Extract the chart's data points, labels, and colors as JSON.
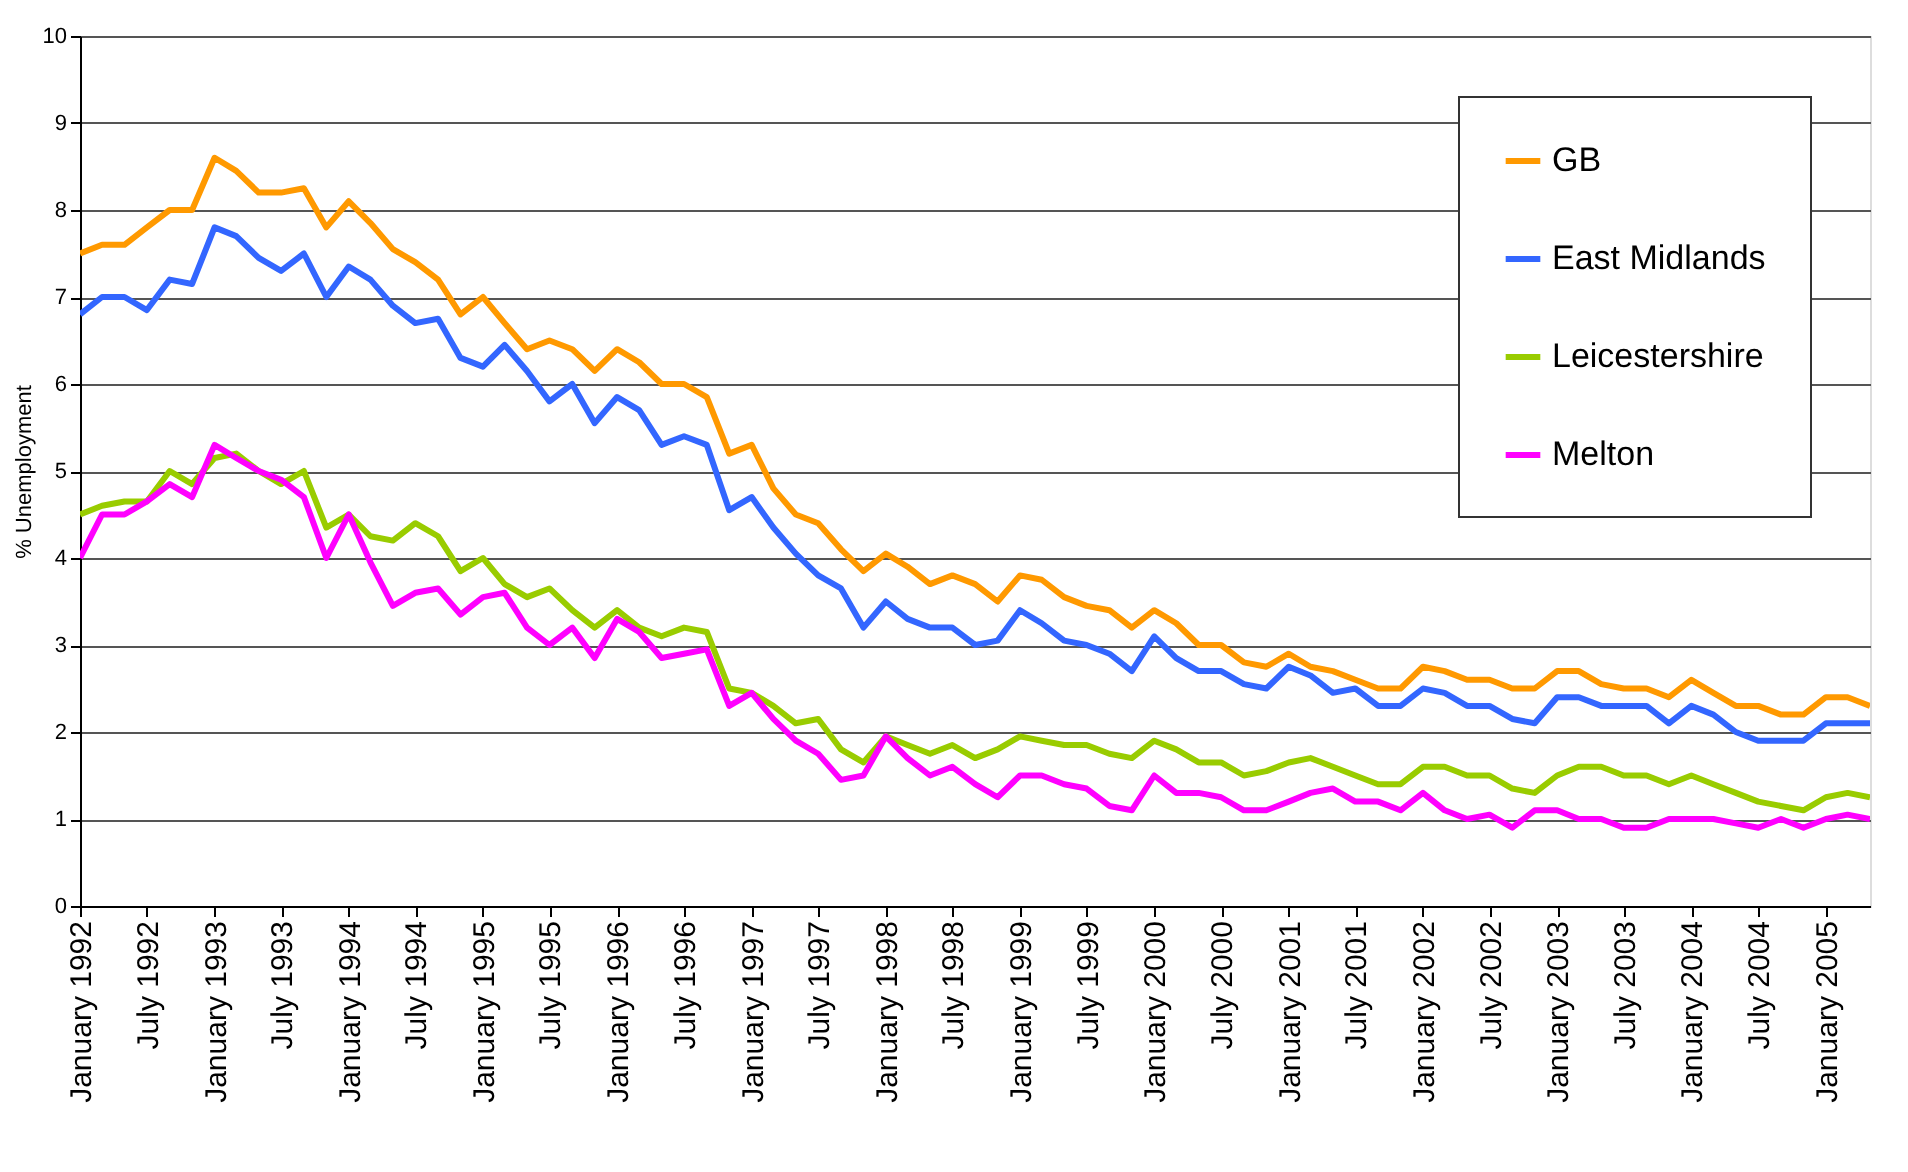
{
  "chart_data": {
    "type": "line",
    "ylabel": "% Unemployment",
    "x": [
      "1992-01",
      "1992-03",
      "1992-05",
      "1992-07",
      "1992-09",
      "1992-11",
      "1993-01",
      "1993-03",
      "1993-05",
      "1993-07",
      "1993-09",
      "1993-11",
      "1994-01",
      "1994-03",
      "1994-05",
      "1994-07",
      "1994-09",
      "1994-11",
      "1995-01",
      "1995-03",
      "1995-05",
      "1995-07",
      "1995-09",
      "1995-11",
      "1996-01",
      "1996-03",
      "1996-05",
      "1996-07",
      "1996-09",
      "1996-11",
      "1997-01",
      "1997-03",
      "1997-05",
      "1997-07",
      "1997-09",
      "1997-11",
      "1998-01",
      "1998-03",
      "1998-05",
      "1998-07",
      "1998-09",
      "1998-11",
      "1999-01",
      "1999-03",
      "1999-05",
      "1999-07",
      "1999-09",
      "1999-11",
      "2000-01",
      "2000-03",
      "2000-05",
      "2000-07",
      "2000-09",
      "2000-11",
      "2001-01",
      "2001-03",
      "2001-05",
      "2001-07",
      "2001-09",
      "2001-11",
      "2002-01",
      "2002-03",
      "2002-05",
      "2002-07",
      "2002-09",
      "2002-11",
      "2003-01",
      "2003-03",
      "2003-05",
      "2003-07",
      "2003-09",
      "2003-11",
      "2004-01",
      "2004-03",
      "2004-05",
      "2004-07",
      "2004-09",
      "2004-11",
      "2005-01",
      "2005-03",
      "2005-05"
    ],
    "series": [
      {
        "name": "GB",
        "color": "#ff9900",
        "values": [
          7.5,
          7.6,
          7.6,
          7.8,
          8.0,
          8.0,
          8.6,
          8.45,
          8.2,
          8.2,
          8.25,
          7.8,
          8.1,
          7.85,
          7.55,
          7.4,
          7.2,
          6.8,
          7.0,
          6.7,
          6.4,
          6.5,
          6.4,
          6.15,
          6.4,
          6.25,
          6.0,
          6.0,
          5.85,
          5.2,
          5.3,
          4.8,
          4.5,
          4.4,
          4.1,
          3.85,
          4.05,
          3.9,
          3.7,
          3.8,
          3.7,
          3.5,
          3.8,
          3.75,
          3.55,
          3.45,
          3.4,
          3.2,
          3.4,
          3.25,
          3.0,
          3.0,
          2.8,
          2.75,
          2.9,
          2.75,
          2.7,
          2.6,
          2.5,
          2.5,
          2.75,
          2.7,
          2.6,
          2.6,
          2.5,
          2.5,
          2.7,
          2.7,
          2.55,
          2.5,
          2.5,
          2.4,
          2.6,
          2.45,
          2.3,
          2.3,
          2.2,
          2.2,
          2.4,
          2.4,
          2.3
        ]
      },
      {
        "name": "East Midlands",
        "color": "#3366ff",
        "values": [
          6.8,
          7.0,
          7.0,
          6.85,
          7.2,
          7.15,
          7.8,
          7.7,
          7.45,
          7.3,
          7.5,
          7.0,
          7.35,
          7.2,
          6.9,
          6.7,
          6.75,
          6.3,
          6.2,
          6.45,
          6.15,
          5.8,
          6.0,
          5.55,
          5.85,
          5.7,
          5.3,
          5.4,
          5.3,
          4.55,
          4.7,
          4.35,
          4.05,
          3.8,
          3.65,
          3.2,
          3.5,
          3.3,
          3.2,
          3.2,
          3.0,
          3.05,
          3.4,
          3.25,
          3.05,
          3.0,
          2.9,
          2.7,
          3.1,
          2.85,
          2.7,
          2.7,
          2.55,
          2.5,
          2.75,
          2.65,
          2.45,
          2.5,
          2.3,
          2.3,
          2.5,
          2.45,
          2.3,
          2.3,
          2.15,
          2.1,
          2.4,
          2.4,
          2.3,
          2.3,
          2.3,
          2.1,
          2.3,
          2.2,
          2.0,
          1.9,
          1.9,
          1.9,
          2.1,
          2.1,
          2.1
        ]
      },
      {
        "name": "Leicestershire",
        "color": "#99cc00",
        "values": [
          4.5,
          4.6,
          4.65,
          4.65,
          5.0,
          4.85,
          5.15,
          5.2,
          5.0,
          4.85,
          5.0,
          4.35,
          4.5,
          4.25,
          4.2,
          4.4,
          4.25,
          3.85,
          4.0,
          3.7,
          3.55,
          3.65,
          3.4,
          3.2,
          3.4,
          3.2,
          3.1,
          3.2,
          3.15,
          2.5,
          2.45,
          2.3,
          2.1,
          2.15,
          1.8,
          1.65,
          1.95,
          1.85,
          1.75,
          1.85,
          1.7,
          1.8,
          1.95,
          1.9,
          1.85,
          1.85,
          1.75,
          1.7,
          1.9,
          1.8,
          1.65,
          1.65,
          1.5,
          1.55,
          1.65,
          1.7,
          1.6,
          1.5,
          1.4,
          1.4,
          1.6,
          1.6,
          1.5,
          1.5,
          1.35,
          1.3,
          1.5,
          1.6,
          1.6,
          1.5,
          1.5,
          1.4,
          1.5,
          1.4,
          1.3,
          1.2,
          1.15,
          1.1,
          1.25,
          1.3,
          1.25
        ]
      },
      {
        "name": "Melton",
        "color": "#ff00ff",
        "values": [
          4.0,
          4.5,
          4.5,
          4.65,
          4.85,
          4.7,
          5.3,
          5.15,
          5.0,
          4.9,
          4.7,
          4.0,
          4.5,
          3.95,
          3.45,
          3.6,
          3.65,
          3.35,
          3.55,
          3.6,
          3.2,
          3.0,
          3.2,
          2.85,
          3.3,
          3.15,
          2.85,
          2.9,
          2.95,
          2.3,
          2.45,
          2.15,
          1.9,
          1.75,
          1.45,
          1.5,
          1.95,
          1.7,
          1.5,
          1.6,
          1.4,
          1.25,
          1.5,
          1.5,
          1.4,
          1.35,
          1.15,
          1.1,
          1.5,
          1.3,
          1.3,
          1.25,
          1.1,
          1.1,
          1.2,
          1.3,
          1.35,
          1.2,
          1.2,
          1.1,
          1.3,
          1.1,
          1.0,
          1.05,
          0.9,
          1.1,
          1.1,
          1.0,
          1.0,
          0.9,
          0.9,
          1.0,
          1.0,
          1.0,
          0.95,
          0.9,
          1.0,
          0.9,
          1.0,
          1.05,
          1.0
        ]
      }
    ],
    "xlim": [
      "1992-01",
      "2005-05"
    ],
    "xticks": [
      {
        "value": "1992-01",
        "label": "January 1992"
      },
      {
        "value": "1992-07",
        "label": "July 1992"
      },
      {
        "value": "1993-01",
        "label": "January 1993"
      },
      {
        "value": "1993-07",
        "label": "July 1993"
      },
      {
        "value": "1994-01",
        "label": "January 1994"
      },
      {
        "value": "1994-07",
        "label": "July 1994"
      },
      {
        "value": "1995-01",
        "label": "January 1995"
      },
      {
        "value": "1995-07",
        "label": "July 1995"
      },
      {
        "value": "1996-01",
        "label": "January 1996"
      },
      {
        "value": "1996-07",
        "label": "July 1996"
      },
      {
        "value": "1997-01",
        "label": "January 1997"
      },
      {
        "value": "1997-07",
        "label": "July 1997"
      },
      {
        "value": "1998-01",
        "label": "January 1998"
      },
      {
        "value": "1998-07",
        "label": "July 1998"
      },
      {
        "value": "1999-01",
        "label": "January 1999"
      },
      {
        "value": "1999-07",
        "label": "July 1999"
      },
      {
        "value": "2000-01",
        "label": "January 2000"
      },
      {
        "value": "2000-07",
        "label": "July 2000"
      },
      {
        "value": "2001-01",
        "label": "January 2001"
      },
      {
        "value": "2001-07",
        "label": "July 2001"
      },
      {
        "value": "2002-01",
        "label": "January 2002"
      },
      {
        "value": "2002-07",
        "label": "July 2002"
      },
      {
        "value": "2003-01",
        "label": "January 2003"
      },
      {
        "value": "2003-07",
        "label": "July 2003"
      },
      {
        "value": "2004-01",
        "label": "January 2004"
      },
      {
        "value": "2004-07",
        "label": "July 2004"
      },
      {
        "value": "2005-01",
        "label": "January 2005"
      }
    ],
    "ylim": [
      0,
      10
    ],
    "yticks": [
      0,
      1,
      2,
      3,
      4,
      5,
      6,
      7,
      8,
      9,
      10
    ],
    "grid": "y",
    "legend": "top right",
    "marker": "none",
    "line_style": "solid"
  }
}
